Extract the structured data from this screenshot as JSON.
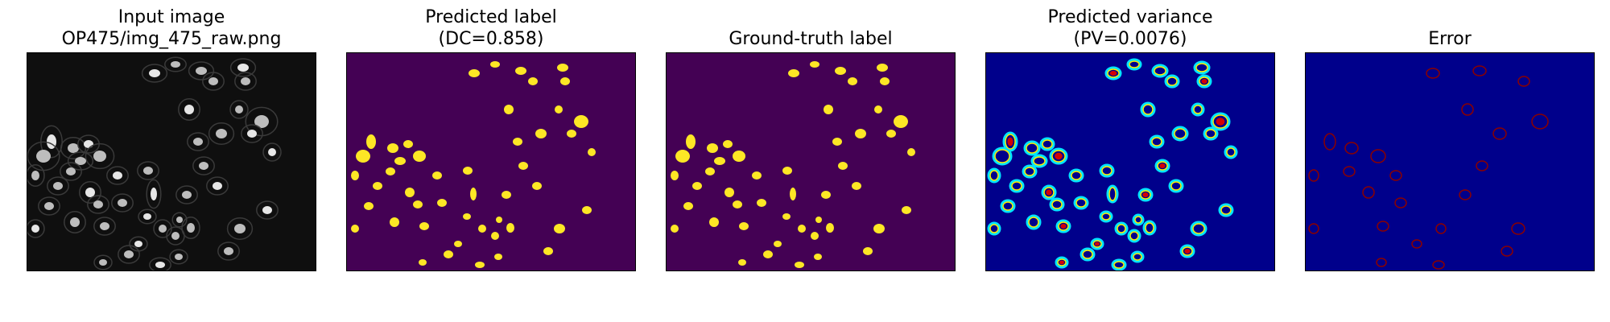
{
  "figure": {
    "panels": [
      {
        "id": "input",
        "title_lines": [
          "Input image",
          "OP475/img_475_raw.png"
        ],
        "colormap": "gray"
      },
      {
        "id": "predicted-label",
        "title_lines": [
          "Predicted label",
          "(DC=0.858)"
        ],
        "colormap": "viridis"
      },
      {
        "id": "ground-truth",
        "title_lines": [
          "",
          "Ground-truth label"
        ],
        "colormap": "viridis"
      },
      {
        "id": "predicted-variance",
        "title_lines": [
          "Predicted variance",
          "(PV=0.0076)"
        ],
        "colormap": "jet"
      },
      {
        "id": "error",
        "title_lines": [
          "",
          "Error"
        ],
        "colormap": "jet"
      }
    ]
  },
  "colors": {
    "gray_background": "#0f0f0f",
    "viridis_background": "#440154",
    "viridis_foreground": "#fde725",
    "jet_background": "#00008b",
    "jet_error": "#8b0000"
  }
}
